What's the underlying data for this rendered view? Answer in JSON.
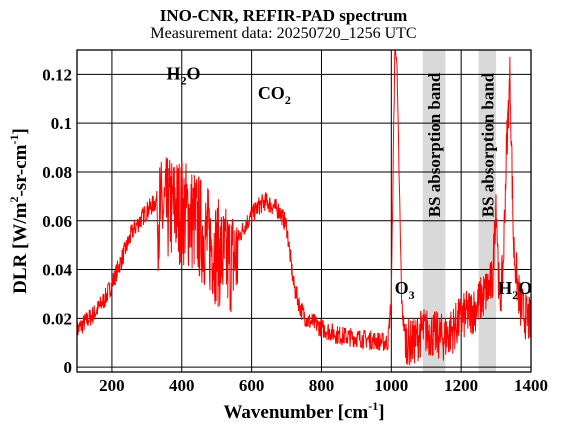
{
  "figure": {
    "title": "INO-CNR, REFIR-PAD spectrum",
    "subtitle": "Measurement data: 20250720_1256 UTC"
  },
  "chart_data": {
    "type": "line",
    "title": "INO-CNR, REFIR-PAD spectrum",
    "subtitle": "Measurement data: 20250720_1256 UTC",
    "xlabel": "Wavenumber [cm",
    "xlabel_sup": "-1",
    "xlabel_end": "]",
    "ylabel": "DLR [W/m",
    "ylabel_sup1": "2",
    "ylabel_mid": "-sr-cm",
    "ylabel_sup2": "-1",
    "ylabel_end": "]",
    "xlim": [
      100,
      1400
    ],
    "ylim": [
      -0.002,
      0.13
    ],
    "xticks": [
      200,
      400,
      600,
      800,
      1000,
      1200,
      1400
    ],
    "xtick_labels": [
      "200",
      "400",
      "600",
      "800",
      "1000",
      "1200",
      "1400"
    ],
    "yticks": [
      0,
      0.02,
      0.04,
      0.06,
      0.08,
      0.1,
      0.12
    ],
    "ytick_labels": [
      "0",
      "0.02",
      "0.04",
      "0.06",
      "0.08",
      "0.1",
      "0.12"
    ],
    "grid": true,
    "line_color": "#ff0000",
    "band_color": "#d9d9d9",
    "series": [
      {
        "x": [
          100,
          120,
          150,
          180,
          200,
          230,
          260,
          300,
          340,
          380,
          410,
          440,
          470,
          500,
          530,
          560,
          580,
          600,
          620,
          640,
          660,
          680,
          700,
          710,
          720,
          740,
          760,
          780,
          800,
          850,
          900,
          950,
          990,
          1000,
          1010,
          1015,
          1025,
          1030,
          1040,
          1050,
          1060,
          1070,
          1080,
          1090,
          1150,
          1160,
          1180,
          1200,
          1220,
          1240,
          1290,
          1300,
          1310,
          1320,
          1330,
          1340,
          1350,
          1360,
          1370,
          1380,
          1390,
          1400
        ],
        "y": [
          0.015,
          0.018,
          0.022,
          0.028,
          0.034,
          0.045,
          0.056,
          0.064,
          0.07,
          0.072,
          0.07,
          0.066,
          0.06,
          0.054,
          0.05,
          0.052,
          0.058,
          0.062,
          0.066,
          0.068,
          0.066,
          0.064,
          0.058,
          0.046,
          0.034,
          0.024,
          0.019,
          0.018,
          0.016,
          0.013,
          0.012,
          0.011,
          0.01,
          0.028,
          0.13,
          0.13,
          0.06,
          0.025,
          0.012,
          0.01,
          0.01,
          0.011,
          0.013,
          0.015,
          0.012,
          0.013,
          0.016,
          0.02,
          0.022,
          0.024,
          0.035,
          0.07,
          0.025,
          0.04,
          0.09,
          0.12,
          0.05,
          0.035,
          0.025,
          0.022,
          0.02,
          0.018
        ]
      }
    ],
    "bands": [
      {
        "label": "BS absorption band",
        "x": [
          1090,
          1155
        ]
      },
      {
        "label": "BS absorption band",
        "x": [
          1250,
          1300
        ]
      }
    ],
    "annotations": [
      {
        "text": "H",
        "sub": "2",
        "text2": "O",
        "x": 405,
        "y": 0.118
      },
      {
        "text": "CO",
        "sub": "2",
        "text2": "",
        "x": 665,
        "y": 0.11
      },
      {
        "text": "O",
        "sub": "3",
        "text2": "",
        "x": 1038,
        "y": 0.03
      },
      {
        "text": "H",
        "sub": "2",
        "text2": "O",
        "x": 1355,
        "y": 0.03
      }
    ]
  }
}
